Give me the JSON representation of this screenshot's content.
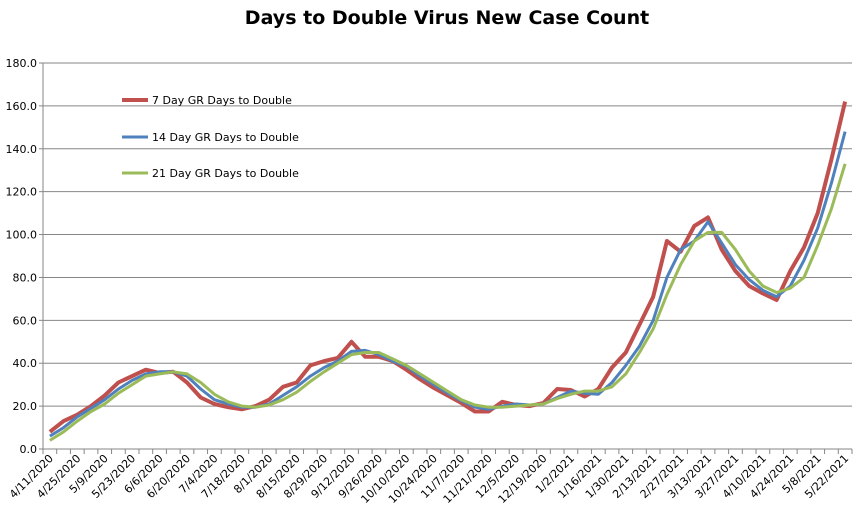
{
  "chart_data": {
    "type": "line",
    "title": "Days to Double Virus New Case Count",
    "xlabel": "",
    "ylabel": "",
    "ylim": [
      0,
      180
    ],
    "yticks": [
      "0.0",
      "20.0",
      "40.0",
      "60.0",
      "80.0",
      "100.0",
      "120.0",
      "140.0",
      "160.0",
      "180.0"
    ],
    "grid": true,
    "legend_placement": "top-left",
    "x": [
      "4/11/2020",
      "4/18/2020",
      "4/25/2020",
      "5/2/2020",
      "5/9/2020",
      "5/16/2020",
      "5/23/2020",
      "5/30/2020",
      "6/6/2020",
      "6/13/2020",
      "6/20/2020",
      "6/27/2020",
      "7/4/2020",
      "7/11/2020",
      "7/18/2020",
      "7/25/2020",
      "8/1/2020",
      "8/8/2020",
      "8/15/2020",
      "8/22/2020",
      "8/29/2020",
      "9/5/2020",
      "9/12/2020",
      "9/19/2020",
      "9/26/2020",
      "10/3/2020",
      "10/10/2020",
      "10/17/2020",
      "10/24/2020",
      "10/31/2020",
      "11/7/2020",
      "11/14/2020",
      "11/21/2020",
      "11/28/2020",
      "12/5/2020",
      "12/12/2020",
      "12/19/2020",
      "12/26/2020",
      "1/2/2021",
      "1/9/2021",
      "1/16/2021",
      "1/23/2021",
      "1/30/2021",
      "2/6/2021",
      "2/13/2021",
      "2/20/2021",
      "2/27/2021",
      "3/6/2021",
      "3/13/2021",
      "3/20/2021",
      "3/27/2021",
      "4/3/2021",
      "4/10/2021",
      "4/17/2021",
      "4/24/2021",
      "5/1/2021",
      "5/8/2021",
      "5/15/2021",
      "5/22/2021"
    ],
    "xtick_labels": [
      "4/11/2020",
      "4/25/2020",
      "5/9/2020",
      "5/23/2020",
      "6/6/2020",
      "6/20/2020",
      "7/4/2020",
      "7/18/2020",
      "8/1/2020",
      "8/15/2020",
      "8/29/2020",
      "9/12/2020",
      "9/26/2020",
      "10/10/2020",
      "10/24/2020",
      "11/7/2020",
      "11/21/2020",
      "12/5/2020",
      "12/19/2020",
      "1/2/2021",
      "1/16/2021",
      "1/30/2021",
      "2/13/2021",
      "2/27/2021",
      "3/13/2021",
      "3/27/2021",
      "4/10/2021",
      "4/24/2021",
      "5/8/2021",
      "5/22/2021"
    ],
    "series": [
      {
        "name": "7 Day GR Days to Double",
        "color": "#C0504D",
        "values": [
          8,
          13,
          16,
          20,
          25,
          31,
          34,
          37,
          35.5,
          36,
          31,
          24,
          21,
          19.5,
          18.5,
          20,
          23,
          29,
          31,
          39,
          41,
          42.5,
          50,
          43,
          43,
          41,
          37,
          32.5,
          28.5,
          25,
          21.5,
          17.5,
          17.5,
          22,
          20.5,
          20,
          21.5,
          28,
          27.5,
          24.5,
          28,
          38,
          45,
          58,
          71,
          97,
          92,
          104,
          108,
          93,
          83,
          76,
          72.5,
          69.5,
          83,
          94,
          110,
          135,
          162
        ]
      },
      {
        "name": "14 Day GR Days to Double",
        "color": "#4F81BD",
        "values": [
          6,
          10,
          15,
          19,
          23,
          28,
          32,
          35,
          36,
          36,
          34,
          28,
          23,
          21,
          19.5,
          19.5,
          21,
          25,
          29,
          34,
          38,
          41,
          45.5,
          46,
          44,
          41,
          38.5,
          34,
          30,
          26,
          22.5,
          19.5,
          18.5,
          20,
          21,
          20.5,
          21,
          24,
          27,
          26,
          25.5,
          31,
          39,
          48,
          60,
          80,
          93,
          97,
          106,
          96,
          86,
          79,
          74,
          71,
          76,
          88,
          103,
          124,
          148
        ]
      },
      {
        "name": "21 Day GR Days to Double",
        "color": "#9BBB59",
        "values": [
          4,
          8,
          13,
          17.5,
          21,
          26,
          30,
          34,
          35,
          36,
          35,
          31,
          25.5,
          22,
          20,
          19.5,
          20.5,
          23,
          26.5,
          31.5,
          36,
          40,
          44,
          45,
          45,
          42,
          39,
          35,
          31,
          27,
          23,
          20.5,
          19.5,
          19.5,
          20,
          20.5,
          21,
          23.5,
          25.5,
          27,
          27,
          29,
          35,
          45,
          56,
          72,
          86,
          97,
          101,
          101,
          93,
          83,
          76,
          73,
          75,
          80,
          95,
          112,
          133
        ]
      }
    ]
  }
}
